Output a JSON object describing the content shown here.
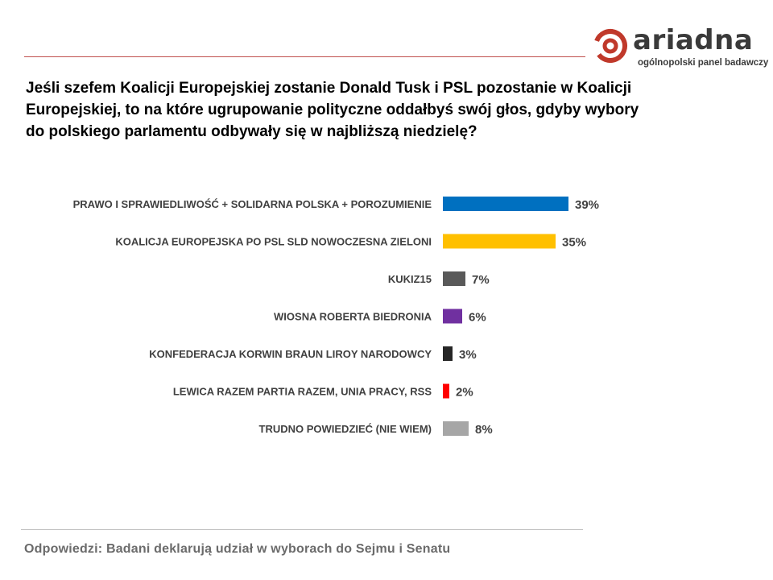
{
  "header": {
    "logo_text": "ariadna",
    "logo_tagline": "ogólnopolski panel badawczy"
  },
  "question": "Jeśli szefem Koalicji Europejskiej zostanie Donald Tusk i PSL pozostanie w Koalicji Europejskiej, to na które ugrupowanie polityczne oddałbyś swój głos, gdyby wybory do polskiego parlamentu odbywały się w najbliższą niedzielę?",
  "footnote": "Odpowiedzi: Badani deklarują udział w wyborach do Sejmu i Senatu",
  "colors": {
    "brand_red": "#c0392b",
    "rule": "#c0504d"
  },
  "chart_data": {
    "type": "bar",
    "orientation": "horizontal",
    "categories": [
      "PRAWO I SPRAWIEDLIWOŚĆ + SOLIDARNA POLSKA + POROZUMIENIE",
      "KOALICJA EUROPEJSKA PO PSL SLD NOWOCZESNA ZIELONI",
      "KUKIZ15",
      "WIOSNA ROBERTA BIEDRONIA",
      "KONFEDERACJA KORWIN BRAUN LIROY NARODOWCY",
      "LEWICA RAZEM PARTIA RAZEM, UNIA PRACY, RSS",
      "TRUDNO POWIEDZIEĆ (NIE WIEM)"
    ],
    "values": [
      39,
      35,
      7,
      6,
      3,
      2,
      8
    ],
    "value_labels": [
      "39%",
      "35%",
      "7%",
      "6%",
      "3%",
      "2%",
      "8%"
    ],
    "colors": [
      "#0070c0",
      "#ffc000",
      "#595959",
      "#7030a0",
      "#262626",
      "#ff0000",
      "#a6a6a6"
    ],
    "xlim": [
      0,
      100
    ],
    "grid": false,
    "legend": "none"
  }
}
